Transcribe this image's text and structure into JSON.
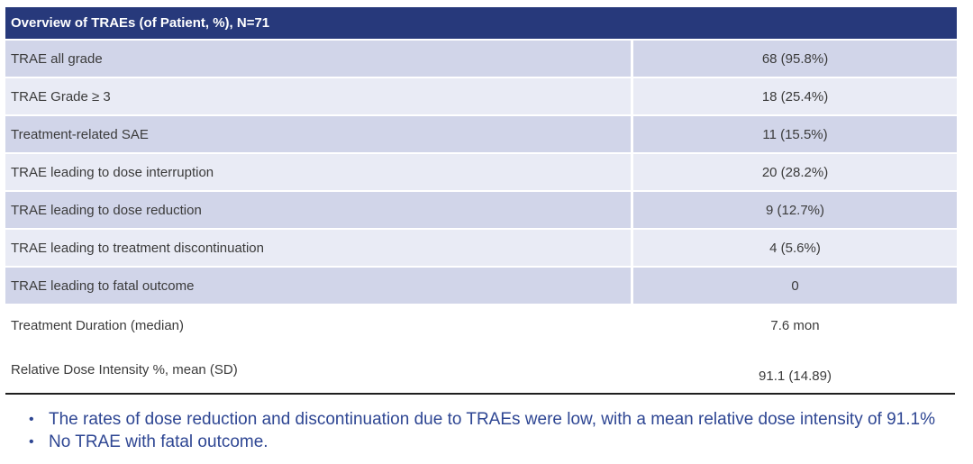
{
  "colors": {
    "header_bg": "#27397B",
    "row_dark": "#D1D5E9",
    "row_light": "#E9EBF5",
    "row_text": "#3B3B3B",
    "note_text": "#2E4693",
    "divider": "#1F1F1F"
  },
  "bullet_char": "•",
  "table": {
    "header": "Overview of TRAEs (of Patient, %), N=71",
    "rows": [
      {
        "label": "TRAE all grade",
        "value": "68 (95.8%)"
      },
      {
        "label": "TRAE Grade ≥ 3",
        "value": "18 (25.4%)"
      },
      {
        "label": "Treatment-related SAE",
        "value": "11 (15.5%)"
      },
      {
        "label": "TRAE leading to dose interruption",
        "value": "20 (28.2%)"
      },
      {
        "label": "TRAE leading to dose reduction",
        "value": "9 (12.7%)"
      },
      {
        "label": "TRAE leading to treatment discontinuation",
        "value": "4 (5.6%)"
      },
      {
        "label": "TRAE leading to fatal outcome",
        "value": "0"
      },
      {
        "label": "Treatment Duration (median)",
        "value": "7.6 mon"
      },
      {
        "label": "Relative Dose Intensity %, mean (SD)",
        "value": "91.1 (14.89)"
      }
    ]
  },
  "notes": [
    "The rates of dose reduction and discontinuation due to TRAEs were low, with a mean relative dose intensity of 91.1%",
    "No TRAE with fatal outcome."
  ]
}
